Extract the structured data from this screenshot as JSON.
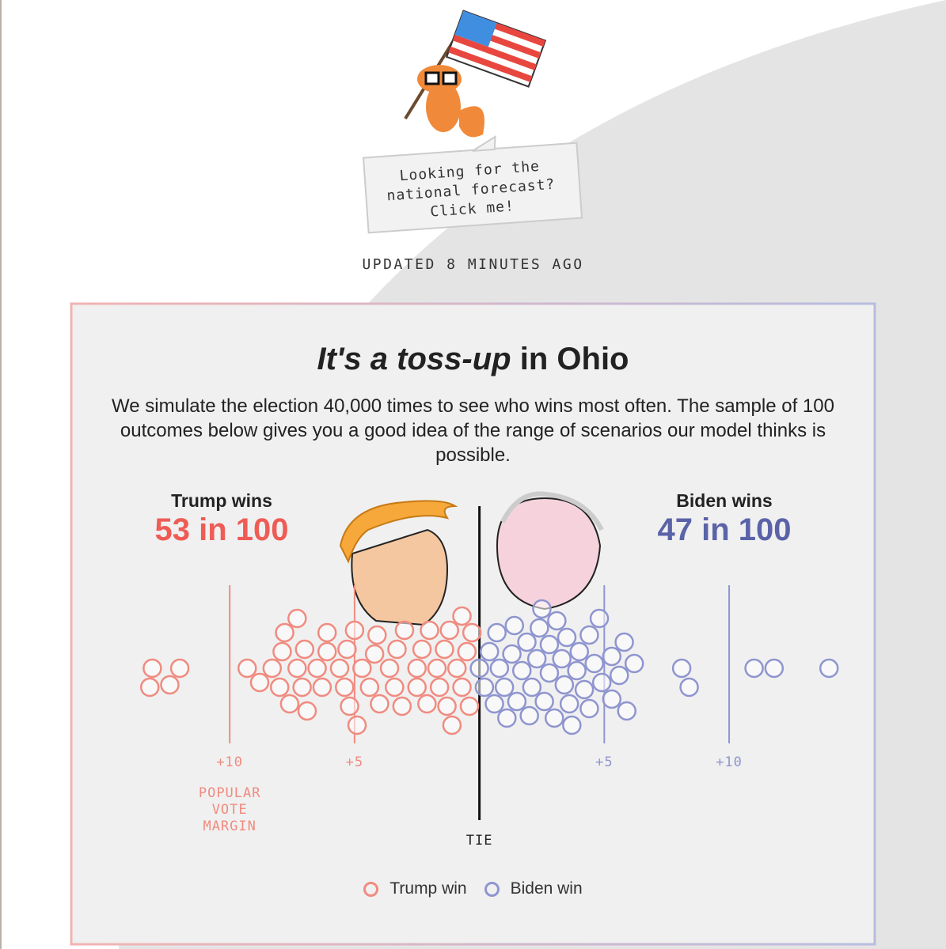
{
  "updated": "UPDATED 8 MINUTES AGO",
  "callout": "Looking for the national forecast? Click me!",
  "chart_data": {
    "type": "beeswarm",
    "title_emphasis": "It's a toss-up",
    "title_rest": "in Ohio",
    "subtitle": "We simulate the election 40,000 times to see who wins most often. The sample of 100 outcomes below gives you a good idea of the range of scenarios our model thinks is possible.",
    "summaries": [
      {
        "label": "Trump wins",
        "value_label": "53 in 100"
      },
      {
        "label": "Biden wins",
        "value_label": "47 in 100"
      }
    ],
    "x_label": "POPULAR VOTE MARGIN",
    "xlim": [
      -14,
      14.5
    ],
    "xticks": [
      {
        "value": -10,
        "label": "+10"
      },
      {
        "value": -5,
        "label": "+5"
      },
      {
        "value": 0,
        "label": "TIE"
      },
      {
        "value": 5,
        "label": "+5"
      },
      {
        "value": 10,
        "label": "+10"
      }
    ],
    "series": [
      {
        "name": "Trump win",
        "color": "#f08b80",
        "text_color": "#ee5c55",
        "values": [
          -13.1,
          -12.0,
          -13.2,
          -12.4,
          -9.3,
          -8.8,
          -8.3,
          -8.0,
          -7.9,
          -7.8,
          -7.6,
          -7.3,
          -7.3,
          -7.1,
          -7.0,
          -6.9,
          -6.5,
          -6.3,
          -6.1,
          -6.1,
          -5.6,
          -5.4,
          -5.3,
          -5.2,
          -5.0,
          -4.9,
          -4.7,
          -4.4,
          -4.2,
          -4.1,
          -4.0,
          -3.6,
          -3.4,
          -3.3,
          -3.1,
          -3.0,
          -2.5,
          -2.5,
          -2.3,
          -2.1,
          -2.0,
          -1.7,
          -1.6,
          -1.4,
          -1.3,
          -1.2,
          -1.1,
          -0.9,
          -0.7,
          -0.7,
          -0.5,
          -0.4,
          -0.3
        ]
      },
      {
        "name": "Biden win",
        "color": "#8f95cf",
        "text_color": "#5a63a8",
        "values": [
          8.1,
          8.4,
          11.0,
          11.8,
          14.0,
          0.0,
          0.2,
          0.4,
          0.6,
          0.7,
          0.8,
          1.0,
          1.1,
          1.3,
          1.4,
          1.5,
          1.7,
          1.9,
          2.0,
          2.1,
          2.3,
          2.4,
          2.5,
          2.6,
          2.8,
          2.8,
          3.0,
          3.1,
          3.3,
          3.4,
          3.5,
          3.6,
          3.7,
          3.9,
          4.0,
          4.2,
          4.4,
          4.4,
          4.6,
          4.8,
          4.9,
          5.3,
          5.3,
          5.6,
          5.8,
          5.9,
          6.2
        ]
      }
    ]
  }
}
